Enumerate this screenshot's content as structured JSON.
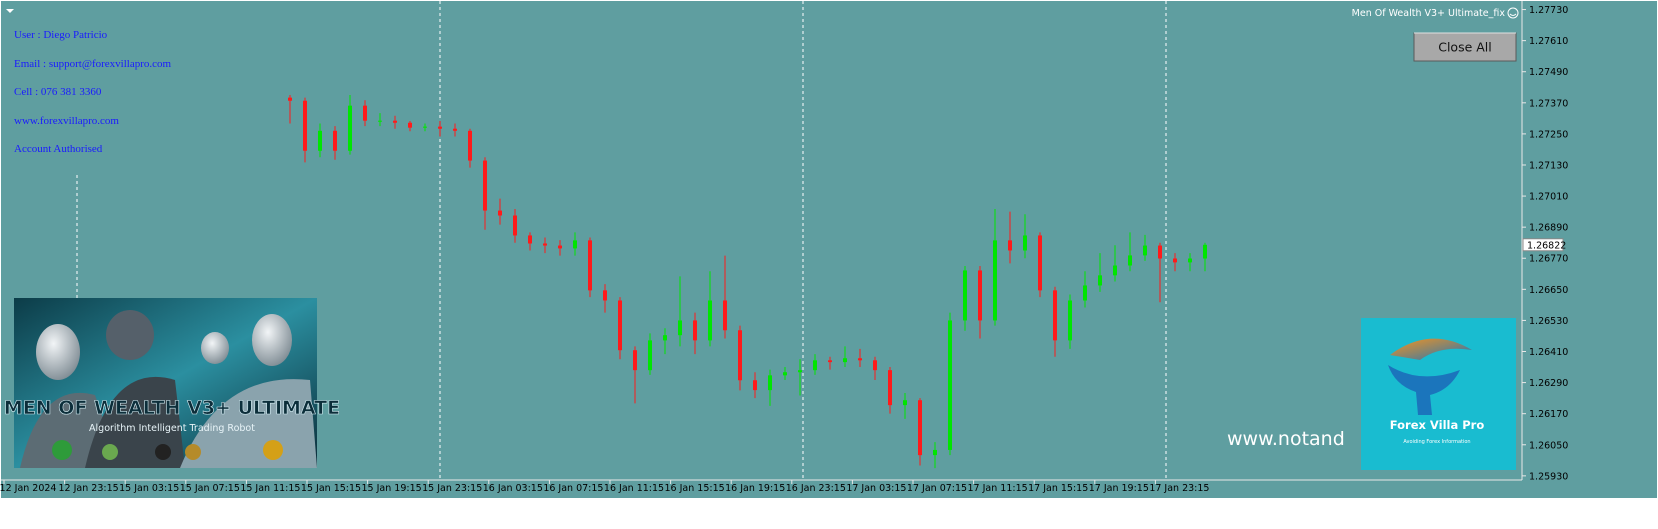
{
  "chart_data": {
    "type": "candlestick",
    "candles": {
      "open": [
        1.2739,
        1.27378,
        1.27185,
        1.27262,
        1.27185,
        1.27359,
        1.27301,
        1.27301,
        1.27293,
        1.27274,
        1.27278,
        1.2727,
        1.27262,
        1.27147,
        1.26954,
        1.26935,
        1.26858,
        1.26827,
        1.26819,
        1.26808,
        1.26839,
        1.26646,
        1.26607,
        1.26415,
        1.26338,
        1.26453,
        1.26473,
        1.2653,
        1.26453,
        1.26607,
        1.26492,
        1.26299,
        1.26261,
        1.26318,
        1.2633,
        1.26338,
        1.26376,
        1.26369,
        1.26384,
        1.26376,
        1.26338,
        1.26203,
        1.26222,
        1.2601,
        1.2603,
        1.2653,
        1.26723,
        1.2653,
        1.26839,
        1.268,
        1.26858,
        1.26646,
        1.26453,
        1.26607,
        1.26665,
        1.26704,
        1.26742,
        1.26781,
        1.26819,
        1.26769,
        1.26754,
        1.26769
      ],
      "high": [
        1.274,
        1.2739,
        1.2729,
        1.2728,
        1.274,
        1.2738,
        1.2733,
        1.2732,
        1.273,
        1.2729,
        1.273,
        1.2729,
        1.2727,
        1.2716,
        1.27,
        1.2696,
        1.2687,
        1.2685,
        1.2684,
        1.2687,
        1.2685,
        1.2667,
        1.2662,
        1.2643,
        1.2648,
        1.265,
        1.267,
        1.2656,
        1.2672,
        1.2678,
        1.2651,
        1.2633,
        1.2634,
        1.2635,
        1.2638,
        1.264,
        1.2639,
        1.2643,
        1.2642,
        1.2639,
        1.2635,
        1.2625,
        1.2623,
        1.2606,
        1.2656,
        1.2674,
        1.2674,
        1.2696,
        1.2695,
        1.2694,
        1.2687,
        1.2666,
        1.2663,
        1.2672,
        1.2679,
        1.2682,
        1.2687,
        1.2686,
        1.2683,
        1.2679,
        1.2679,
        1.2683
      ],
      "low": [
        1.2729,
        1.2714,
        1.2716,
        1.2715,
        1.2717,
        1.2728,
        1.2728,
        1.2727,
        1.2726,
        1.2726,
        1.2724,
        1.2724,
        1.2712,
        1.2688,
        1.269,
        1.2683,
        1.268,
        1.2679,
        1.2678,
        1.2678,
        1.2662,
        1.2656,
        1.2638,
        1.2621,
        1.2632,
        1.264,
        1.2643,
        1.264,
        1.2643,
        1.2646,
        1.2626,
        1.2623,
        1.262,
        1.263,
        1.2624,
        1.2632,
        1.2634,
        1.2635,
        1.2635,
        1.263,
        1.2617,
        1.2615,
        1.2597,
        1.2596,
        1.2601,
        1.2649,
        1.2646,
        1.2651,
        1.2675,
        1.2677,
        1.2662,
        1.2639,
        1.2642,
        1.2658,
        1.2664,
        1.2668,
        1.2672,
        1.2676,
        1.266,
        1.2672,
        1.2672,
        1.2672
      ],
      "close": [
        1.27378,
        1.27185,
        1.27262,
        1.27185,
        1.27359,
        1.27301,
        1.27301,
        1.27293,
        1.27274,
        1.27278,
        1.2727,
        1.27262,
        1.27147,
        1.26954,
        1.26935,
        1.26858,
        1.26827,
        1.26819,
        1.26808,
        1.26839,
        1.26646,
        1.26607,
        1.26415,
        1.26338,
        1.26453,
        1.26473,
        1.2653,
        1.26453,
        1.26607,
        1.26492,
        1.26299,
        1.26261,
        1.26318,
        1.2633,
        1.26338,
        1.26376,
        1.26369,
        1.26384,
        1.26376,
        1.26338,
        1.26203,
        1.26222,
        1.2601,
        1.2603,
        1.2653,
        1.26723,
        1.2653,
        1.26839,
        1.268,
        1.26858,
        1.26646,
        1.26453,
        1.26607,
        1.26665,
        1.26704,
        1.26742,
        1.26781,
        1.26819,
        1.26769,
        1.26754,
        1.26769,
        1.26822
      ]
    },
    "up_color": "#00e600",
    "down_color": "#ff1a1a",
    "background": "#5f9ea0",
    "ylim": [
      1.25914,
      1.27763
    ],
    "yticks": [
      {
        "value": 1.2773,
        "label": "1.27730"
      },
      {
        "value": 1.2761,
        "label": "1.27610"
      },
      {
        "value": 1.2749,
        "label": "1.27490"
      },
      {
        "value": 1.2737,
        "label": "1.27370"
      },
      {
        "value": 1.2725,
        "label": "1.27250"
      },
      {
        "value": 1.2713,
        "label": "1.27130"
      },
      {
        "value": 1.2701,
        "label": "1.27010"
      },
      {
        "value": 1.2689,
        "label": "1.26890"
      },
      {
        "value": 1.2677,
        "label": "1.26770"
      },
      {
        "value": 1.2665,
        "label": "1.26650"
      },
      {
        "value": 1.2653,
        "label": "1.26530"
      },
      {
        "value": 1.2641,
        "label": "1.26410"
      },
      {
        "value": 1.2629,
        "label": "1.26290"
      },
      {
        "value": 1.2617,
        "label": "1.26170"
      },
      {
        "value": 1.2605,
        "label": "1.26050"
      },
      {
        "value": 1.2593,
        "label": "1.25930"
      }
    ],
    "x_labels": [
      "12 Jan 2024",
      "12 Jan 23:15",
      "15 Jan 03:15",
      "15 Jan 07:15",
      "15 Jan 11:15",
      "15 Jan 15:15",
      "15 Jan 19:15",
      "15 Jan 23:15",
      "16 Jan 03:15",
      "16 Jan 07:15",
      "16 Jan 11:15",
      "16 Jan 15:15",
      "16 Jan 19:15",
      "16 Jan 23:15",
      "17 Jan 03:15",
      "17 Jan 07:15",
      "17 Jan 11:15",
      "17 Jan 15:15",
      "17 Jan 19:15",
      "17 Jan 23:15"
    ]
  },
  "ui": {
    "info_lines": [
      "User : Diego Patricio",
      "Email : support@forexvillapro.com",
      "Cell : 076 381 3360",
      "www.forexvillapro.com",
      "Account Authorised"
    ],
    "expert_name": "Men Of Wealth V3+ Ultimate_fix",
    "button": "Close All",
    "banner_title": "MEN OF WEALTH V3+ ULTIMATE",
    "banner_subtitle": "Algorithm Intelligent Trading Robot",
    "logo_title": "Forex Villa Pro",
    "logo_subtitle": "Avoiding Forex Information",
    "watermark": "www.notand"
  }
}
